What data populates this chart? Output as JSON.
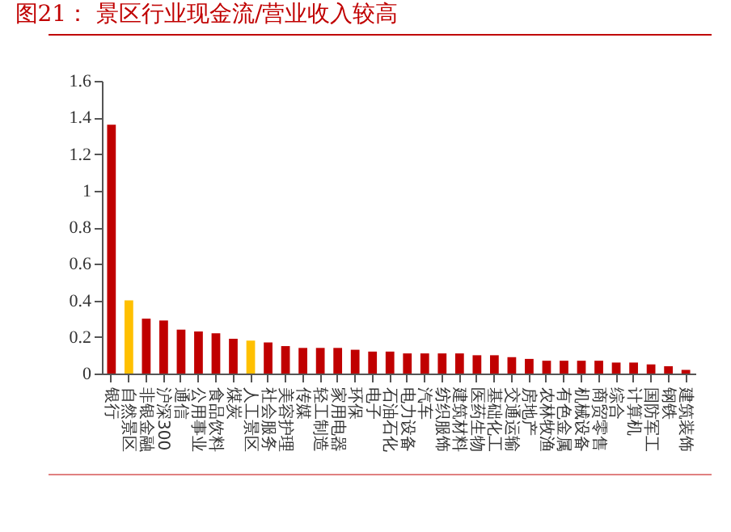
{
  "chart_data": {
    "type": "bar",
    "title": "图21：  景区行业现金流/营业收入较高",
    "categories": [
      "银行",
      "自然景区",
      "非银金融",
      "沪深300",
      "通信",
      "公用事业",
      "食品饮料",
      "煤炭",
      "人工景区",
      "社会服务",
      "美容护理",
      "传媒",
      "轻工制造",
      "家用电器",
      "环保",
      "电子",
      "石油石化",
      "电力设备",
      "汽车",
      "纺织服饰",
      "建筑材料",
      "医药生物",
      "基础化工",
      "交通运输",
      "房地产",
      "农林牧渔",
      "有色金属",
      "机械设备",
      "商贸零售",
      "综合",
      "计算机",
      "国防军工",
      "钢铁",
      "建筑装饰"
    ],
    "values": [
      1.36,
      0.4,
      0.3,
      0.29,
      0.24,
      0.23,
      0.22,
      0.19,
      0.18,
      0.17,
      0.15,
      0.14,
      0.14,
      0.14,
      0.13,
      0.12,
      0.12,
      0.11,
      0.11,
      0.11,
      0.11,
      0.1,
      0.1,
      0.09,
      0.08,
      0.07,
      0.07,
      0.07,
      0.07,
      0.06,
      0.06,
      0.05,
      0.04,
      0.02
    ],
    "colors": [
      "#c00000",
      "#ffc000",
      "#c00000",
      "#c00000",
      "#c00000",
      "#c00000",
      "#c00000",
      "#c00000",
      "#ffc000",
      "#c00000",
      "#c00000",
      "#c00000",
      "#c00000",
      "#c00000",
      "#c00000",
      "#c00000",
      "#c00000",
      "#c00000",
      "#c00000",
      "#c00000",
      "#c00000",
      "#c00000",
      "#c00000",
      "#c00000",
      "#c00000",
      "#c00000",
      "#c00000",
      "#c00000",
      "#c00000",
      "#c00000",
      "#c00000",
      "#c00000",
      "#c00000",
      "#c00000"
    ],
    "ylim": [
      0,
      1.6
    ],
    "yticks": [
      0,
      0.2,
      0.4,
      0.6,
      0.8,
      1,
      1.2,
      1.4,
      1.6
    ],
    "grid": false,
    "legend": false
  }
}
